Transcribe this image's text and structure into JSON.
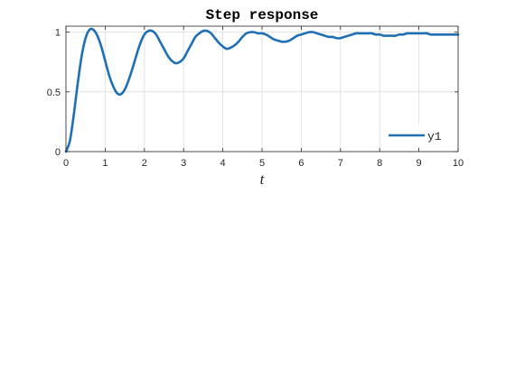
{
  "chart_data": {
    "type": "line",
    "title": "Step response",
    "xlabel": "t",
    "ylabel": "",
    "xlim": [
      0,
      10
    ],
    "ylim": [
      0,
      1.05
    ],
    "xticks": [
      0,
      1,
      2,
      3,
      4,
      5,
      6,
      7,
      8,
      9,
      10
    ],
    "xtick_labels": [
      "0",
      "1",
      "2",
      "3",
      "4",
      "5",
      "6",
      "7",
      "8",
      "9",
      "10"
    ],
    "yticks": [
      0,
      0.5,
      1
    ],
    "ytick_labels": [
      "0",
      "0.5",
      "1"
    ],
    "grid": true,
    "legend_position": "bottom-right",
    "series": [
      {
        "name": "y1",
        "color": "#1f6fb4",
        "x": [
          0,
          0.1,
          0.2,
          0.3,
          0.4,
          0.5,
          0.6,
          0.7,
          0.8,
          0.9,
          1.0,
          1.1,
          1.2,
          1.3,
          1.4,
          1.5,
          1.6,
          1.7,
          1.8,
          1.9,
          2.0,
          2.1,
          2.2,
          2.3,
          2.4,
          2.5,
          2.6,
          2.7,
          2.8,
          2.9,
          3.0,
          3.1,
          3.2,
          3.3,
          3.4,
          3.5,
          3.6,
          3.7,
          3.8,
          3.9,
          4.0,
          4.1,
          4.2,
          4.3,
          4.4,
          4.5,
          4.6,
          4.7,
          4.8,
          4.9,
          5.0,
          5.1,
          5.2,
          5.3,
          5.4,
          5.5,
          5.6,
          5.7,
          5.8,
          5.9,
          6.0,
          6.1,
          6.2,
          6.3,
          6.4,
          6.5,
          6.6,
          6.7,
          6.8,
          6.9,
          7.0,
          7.1,
          7.2,
          7.3,
          7.4,
          7.5,
          7.6,
          7.7,
          7.8,
          7.9,
          8.0,
          8.1,
          8.2,
          8.3,
          8.4,
          8.5,
          8.6,
          8.7,
          8.8,
          8.9,
          9.0,
          9.1,
          9.2,
          9.3,
          9.4,
          9.5,
          9.6,
          9.7,
          9.8,
          9.9,
          10.0
        ],
        "y": [
          0,
          0.09,
          0.31,
          0.57,
          0.8,
          0.95,
          1.02,
          1.02,
          0.97,
          0.88,
          0.76,
          0.64,
          0.55,
          0.49,
          0.48,
          0.52,
          0.6,
          0.7,
          0.81,
          0.91,
          0.98,
          1.01,
          1.01,
          0.98,
          0.92,
          0.86,
          0.8,
          0.76,
          0.74,
          0.75,
          0.78,
          0.84,
          0.9,
          0.96,
          0.99,
          1.01,
          1.01,
          0.99,
          0.95,
          0.91,
          0.88,
          0.86,
          0.87,
          0.89,
          0.92,
          0.96,
          0.99,
          1.0,
          1.0,
          0.99,
          0.99,
          0.98,
          0.96,
          0.94,
          0.93,
          0.92,
          0.92,
          0.93,
          0.95,
          0.97,
          0.98,
          0.99,
          1.0,
          1.0,
          0.99,
          0.98,
          0.97,
          0.96,
          0.96,
          0.95,
          0.95,
          0.96,
          0.97,
          0.98,
          0.99,
          0.99,
          0.99,
          0.99,
          0.99,
          0.98,
          0.98,
          0.97,
          0.97,
          0.97,
          0.97,
          0.98,
          0.98,
          0.99,
          0.99,
          0.99,
          0.99,
          0.99,
          0.99,
          0.98,
          0.98,
          0.98,
          0.98,
          0.98,
          0.98,
          0.98,
          0.98
        ]
      }
    ]
  }
}
